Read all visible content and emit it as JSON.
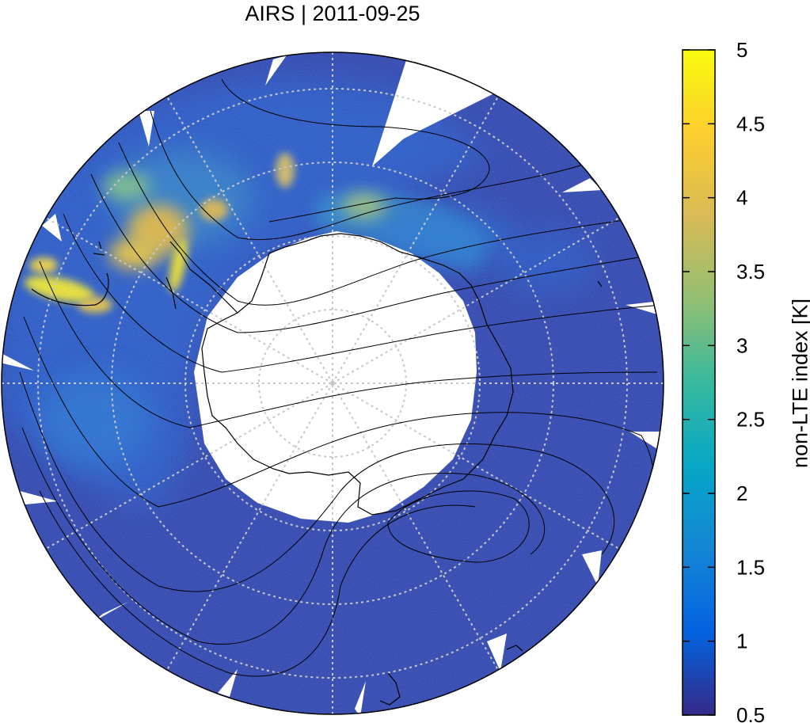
{
  "title": "AIRS | 2011-09-25",
  "colorbar": {
    "label": "non-LTE index [K]",
    "min": 0.5,
    "max": 5,
    "ticks": [
      "5",
      "4.5",
      "4",
      "3.5",
      "3",
      "2.5",
      "2",
      "1.5",
      "1",
      "0.5"
    ],
    "colormap": [
      "#352a87",
      "#0363e1",
      "#1485d4",
      "#06a7c6",
      "#38b99e",
      "#92bf73",
      "#d9ba56",
      "#fcce2e",
      "#f9fb0e"
    ]
  },
  "map": {
    "projection": "polar-stereographic-south",
    "grid": "dotted",
    "background_level": 0.7,
    "missing_color": "#ffffff",
    "hotspot_level": 4.6,
    "moderate_level": 3.3
  }
}
